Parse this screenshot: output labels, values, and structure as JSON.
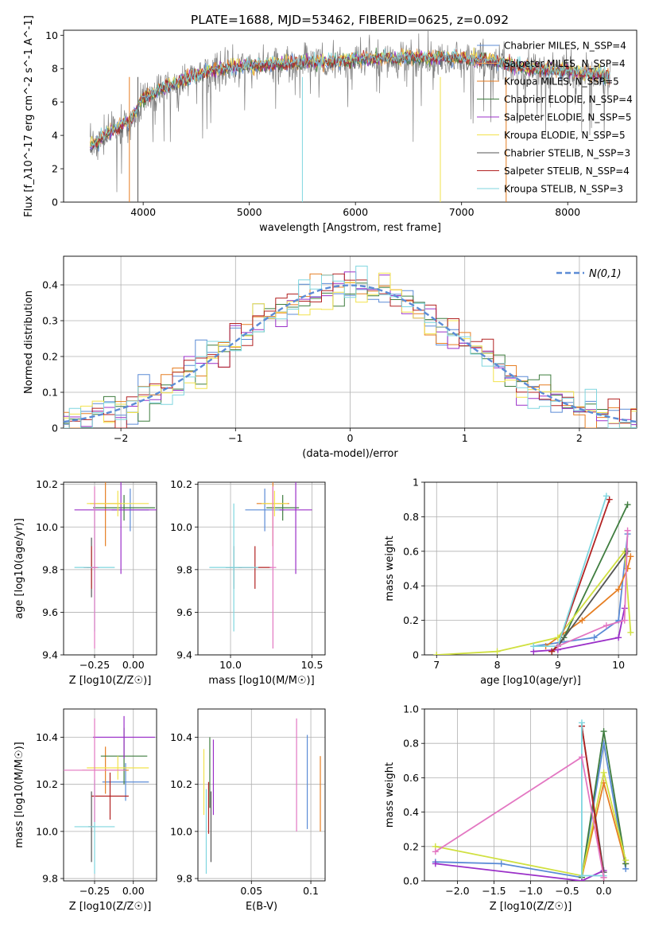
{
  "title": "PLATE=1688, MJD=53462, FIBERID=0625, z=0.092",
  "colors": {
    "chabrier_miles": "#5b8bd6",
    "salpeter_miles": "#e8a15b",
    "kroupa_miles": "#e67e22",
    "chabrier_elodie": "#3f7d3f",
    "salpeter_elodie": "#9b30c8",
    "kroupa_elodie": "#f2e24b",
    "chabrier_stelib": "#555555",
    "salpeter_stelib": "#b22222",
    "kroupa_stelib": "#7fd6df",
    "normal_curve": "#5b8bd6",
    "pink": "#e377c2",
    "lime": "#d0e040"
  },
  "chart_data": [
    {
      "id": "spectrum",
      "type": "line",
      "xlabel": "wavelength [Angstrom, rest frame]",
      "ylabel": "Flux [f_λ10^-17 erg cm^-2 s^-1 A^-1]",
      "xlim": [
        3250,
        8650
      ],
      "ylim": [
        0,
        10.3
      ],
      "xticks": [
        4000,
        5000,
        6000,
        7000,
        8000
      ],
      "yticks": [
        0,
        2,
        4,
        6,
        8,
        10
      ],
      "legend_position": "right",
      "legend": [
        {
          "label": "Chabrier MILES, N_SSP=4",
          "color": "chabrier_miles"
        },
        {
          "label": "Salpeter MILES, N_SSP=4",
          "color": "salpeter_miles"
        },
        {
          "label": "Kroupa MILES, N_SSP=5",
          "color": "kroupa_miles"
        },
        {
          "label": "Chabrier ELODIE, N_SSP=4",
          "color": "chabrier_elodie"
        },
        {
          "label": "Salpeter ELODIE, N_SSP=5",
          "color": "salpeter_elodie"
        },
        {
          "label": "Kroupa ELODIE, N_SSP=5",
          "color": "kroupa_elodie"
        },
        {
          "label": "Chabrier STELIB, N_SSP=3",
          "color": "chabrier_stelib"
        },
        {
          "label": "Salpeter STELIB, N_SSP=4",
          "color": "salpeter_stelib"
        },
        {
          "label": "Kroupa STELIB, N_SSP=3",
          "color": "kroupa_stelib"
        }
      ],
      "continuum": {
        "x": [
          3500,
          3700,
          3900,
          4000,
          4200,
          4400,
          4600,
          4800,
          5000,
          5200,
          5500,
          6000,
          6500,
          7000,
          7400,
          7600,
          8000,
          8400
        ],
        "y": [
          3.3,
          4.2,
          5.0,
          6.2,
          6.8,
          7.3,
          7.8,
          8.0,
          8.1,
          8.2,
          8.3,
          8.5,
          8.6,
          8.6,
          8.3,
          8.0,
          7.8,
          7.5
        ]
      }
    },
    {
      "id": "residuals",
      "type": "bar",
      "xlabel": "(data-model)/error",
      "ylabel": "Normed distribution",
      "xlim": [
        -2.5,
        2.5
      ],
      "ylim": [
        0,
        0.48
      ],
      "xticks": [
        -2,
        -1,
        0,
        1,
        2
      ],
      "yticks": [
        0.0,
        0.1,
        0.2,
        0.3,
        0.4
      ],
      "legend": [
        {
          "label": "N(0,1)",
          "color": "normal_curve",
          "style": "dashed"
        }
      ],
      "bin_width": 0.1
    },
    {
      "id": "age-vs-z",
      "type": "scatter",
      "xlabel": "Z [log10(Z/Z☉)]",
      "ylabel": "age [log10(age/yr)]",
      "xlim": [
        -0.45,
        0.15
      ],
      "ylim": [
        9.4,
        10.21
      ],
      "xticks": [
        -0.25,
        0.0
      ],
      "yticks": [
        9.4,
        9.6,
        9.8,
        10.0,
        10.2
      ],
      "points": [
        {
          "x": -0.02,
          "y": 10.08,
          "xerr": 0.12,
          "yerr": 0.1,
          "color": "chabrier_miles"
        },
        {
          "x": -0.18,
          "y": 10.11,
          "xerr": 0.1,
          "yerr": 0.2,
          "color": "kroupa_miles"
        },
        {
          "x": -0.06,
          "y": 10.09,
          "xerr": 0.2,
          "yerr": 0.06,
          "color": "chabrier_elodie"
        },
        {
          "x": -0.08,
          "y": 10.08,
          "xerr": 0.3,
          "yerr": 0.3,
          "color": "salpeter_elodie"
        },
        {
          "x": -0.1,
          "y": 10.11,
          "xerr": 0.2,
          "yerr": 0.06,
          "color": "kroupa_elodie"
        },
        {
          "x": -0.27,
          "y": 9.81,
          "xerr": 0.03,
          "yerr": 0.14,
          "color": "chabrier_stelib"
        },
        {
          "x": -0.27,
          "y": 9.81,
          "xerr": 0.05,
          "yerr": 0.1,
          "color": "salpeter_stelib"
        },
        {
          "x": -0.25,
          "y": 9.81,
          "xerr": 0.13,
          "yerr": 0.3,
          "color": "kroupa_stelib"
        },
        {
          "x": -0.25,
          "y": 9.81,
          "xerr": 0.02,
          "yerr": 0.38,
          "color": "pink"
        }
      ]
    },
    {
      "id": "age-vs-mass",
      "type": "scatter",
      "xlabel": "mass [log10(M/M☉)]",
      "ylabel": "",
      "xlim": [
        9.8,
        10.58
      ],
      "ylim": [
        9.4,
        10.21
      ],
      "xticks": [
        10.0,
        10.5
      ],
      "yticks": [
        9.4,
        9.6,
        9.8,
        10.0,
        10.2
      ],
      "points": [
        {
          "x": 10.21,
          "y": 10.08,
          "xerr": 0.12,
          "yerr": 0.1,
          "color": "chabrier_miles"
        },
        {
          "x": 10.26,
          "y": 10.11,
          "xerr": 0.1,
          "yerr": 0.2,
          "color": "kroupa_miles"
        },
        {
          "x": 10.32,
          "y": 10.09,
          "xerr": 0.1,
          "yerr": 0.06,
          "color": "chabrier_elodie"
        },
        {
          "x": 10.4,
          "y": 10.08,
          "xerr": 0.1,
          "yerr": 0.3,
          "color": "salpeter_elodie"
        },
        {
          "x": 10.27,
          "y": 10.11,
          "xerr": 0.08,
          "yerr": 0.06,
          "color": "kroupa_elodie"
        },
        {
          "x": 10.02,
          "y": 9.81,
          "xerr": 0.05,
          "yerr": 0.1,
          "color": "chabrier_stelib"
        },
        {
          "x": 10.15,
          "y": 9.81,
          "xerr": 0.1,
          "yerr": 0.1,
          "color": "salpeter_stelib"
        },
        {
          "x": 10.02,
          "y": 9.81,
          "xerr": 0.15,
          "yerr": 0.3,
          "color": "kroupa_stelib"
        },
        {
          "x": 10.26,
          "y": 9.81,
          "xerr": 0.02,
          "yerr": 0.38,
          "color": "pink"
        }
      ]
    },
    {
      "id": "mass-weight-vs-age",
      "type": "line",
      "xlabel": "age [log10(age/yr)]",
      "ylabel": "mass weight",
      "xlim": [
        6.8,
        10.3
      ],
      "ylim": [
        0,
        1.0
      ],
      "xticks": [
        7,
        8,
        9,
        10
      ],
      "yticks": [
        0.0,
        0.2,
        0.4,
        0.6,
        0.8,
        1.0
      ],
      "series": [
        {
          "color": "chabrier_miles",
          "x": [
            8.6,
            9.6,
            10.0,
            10.15
          ],
          "y": [
            0.05,
            0.1,
            0.2,
            0.7
          ]
        },
        {
          "color": "kroupa_miles",
          "x": [
            8.8,
            9.4,
            10.0,
            10.15,
            10.2
          ],
          "y": [
            0.05,
            0.2,
            0.38,
            0.5,
            0.57
          ]
        },
        {
          "color": "chabrier_elodie",
          "x": [
            8.9,
            9.1,
            10.15
          ],
          "y": [
            0.02,
            0.1,
            0.87
          ]
        },
        {
          "color": "salpeter_elodie",
          "x": [
            8.6,
            9.0,
            10.0,
            10.1
          ],
          "y": [
            0.02,
            0.03,
            0.1,
            0.27
          ]
        },
        {
          "color": "lime",
          "x": [
            7.0,
            8.0,
            9.0,
            10.1,
            10.2
          ],
          "y": [
            0.0,
            0.02,
            0.1,
            0.6,
            0.13
          ]
        },
        {
          "color": "chabrier_stelib",
          "x": [
            9.0,
            10.15
          ],
          "y": [
            0.05,
            0.6
          ]
        },
        {
          "color": "salpeter_stelib",
          "x": [
            8.9,
            9.0,
            9.85
          ],
          "y": [
            0.02,
            0.05,
            0.9
          ]
        },
        {
          "color": "kroupa_stelib",
          "x": [
            8.6,
            9.0,
            9.8
          ],
          "y": [
            0.05,
            0.05,
            0.92
          ]
        },
        {
          "color": "pink",
          "x": [
            9.0,
            9.8,
            10.1,
            10.15
          ],
          "y": [
            0.05,
            0.17,
            0.2,
            0.72
          ]
        }
      ]
    },
    {
      "id": "mass-vs-z",
      "type": "scatter",
      "xlabel": "Z [log10(Z/Z☉)]",
      "ylabel": "mass [log10(M/M☉)]",
      "xlim": [
        -0.45,
        0.15
      ],
      "ylim": [
        9.79,
        10.52
      ],
      "xticks": [
        -0.25,
        0.0
      ],
      "yticks": [
        9.8,
        10.0,
        10.2,
        10.4
      ],
      "points": [
        {
          "x": -0.05,
          "y": 10.21,
          "xerr": 0.15,
          "yerr": 0.08,
          "color": "chabrier_miles"
        },
        {
          "x": -0.18,
          "y": 10.26,
          "xerr": 0.15,
          "yerr": 0.1,
          "color": "kroupa_miles"
        },
        {
          "x": -0.06,
          "y": 10.32,
          "xerr": 0.15,
          "yerr": 0.12,
          "color": "chabrier_elodie"
        },
        {
          "x": -0.06,
          "y": 10.4,
          "xerr": 0.2,
          "yerr": 0.09,
          "color": "salpeter_elodie"
        },
        {
          "x": -0.1,
          "y": 10.27,
          "xerr": 0.2,
          "yerr": 0.05,
          "color": "kroupa_elodie"
        },
        {
          "x": -0.27,
          "y": 10.02,
          "xerr": 0.02,
          "yerr": 0.15,
          "color": "chabrier_stelib"
        },
        {
          "x": -0.15,
          "y": 10.15,
          "xerr": 0.12,
          "yerr": 0.1,
          "color": "salpeter_stelib"
        },
        {
          "x": -0.25,
          "y": 10.02,
          "xerr": 0.13,
          "yerr": 0.2,
          "color": "kroupa_stelib"
        },
        {
          "x": -0.25,
          "y": 10.26,
          "xerr": 0.2,
          "yerr": 0.22,
          "color": "pink"
        }
      ]
    },
    {
      "id": "mass-vs-ebv",
      "type": "scatter",
      "xlabel": "E(B-V)",
      "ylabel": "",
      "xlim": [
        0.005,
        0.112
      ],
      "ylim": [
        9.79,
        10.52
      ],
      "xticks": [
        0.05,
        0.1
      ],
      "yticks": [
        9.8,
        10.0,
        10.2,
        10.4
      ],
      "points": [
        {
          "x": 0.097,
          "y": 10.21,
          "yerr": 0.2,
          "color": "chabrier_miles"
        },
        {
          "x": 0.108,
          "y": 10.16,
          "yerr": 0.16,
          "color": "kroupa_miles"
        },
        {
          "x": 0.015,
          "y": 10.25,
          "yerr": 0.15,
          "color": "chabrier_elodie"
        },
        {
          "x": 0.018,
          "y": 10.23,
          "yerr": 0.16,
          "color": "salpeter_elodie"
        },
        {
          "x": 0.01,
          "y": 10.21,
          "yerr": 0.14,
          "color": "kroupa_elodie"
        },
        {
          "x": 0.016,
          "y": 10.02,
          "yerr": 0.15,
          "color": "chabrier_stelib"
        },
        {
          "x": 0.014,
          "y": 10.1,
          "yerr": 0.11,
          "color": "salpeter_stelib"
        },
        {
          "x": 0.012,
          "y": 10.0,
          "yerr": 0.18,
          "color": "kroupa_stelib"
        },
        {
          "x": 0.088,
          "y": 10.24,
          "yerr": 0.24,
          "color": "pink"
        }
      ]
    },
    {
      "id": "mass-weight-vs-z",
      "type": "line",
      "xlabel": "Z [log10(Z/Z☉)]",
      "ylabel": "mass weight",
      "xlim": [
        -2.45,
        0.45
      ],
      "ylim": [
        0,
        1.0
      ],
      "xticks": [
        -2.0,
        -1.5,
        -1.0,
        -0.5,
        0.0
      ],
      "yticks": [
        0.0,
        0.2,
        0.4,
        0.6,
        0.8,
        1.0
      ],
      "series": [
        {
          "color": "chabrier_miles",
          "x": [
            -2.3,
            -1.4,
            -0.3,
            0.0,
            0.3
          ],
          "y": [
            0.11,
            0.1,
            0.02,
            0.8,
            0.07
          ]
        },
        {
          "color": "kroupa_miles",
          "x": [
            -0.3,
            0.0,
            0.3
          ],
          "y": [
            0.02,
            0.57,
            0.1
          ]
        },
        {
          "color": "chabrier_elodie",
          "x": [
            -0.3,
            0.0,
            0.3
          ],
          "y": [
            0.02,
            0.87,
            0.1
          ]
        },
        {
          "color": "salpeter_elodie",
          "x": [
            -2.3,
            -0.3,
            0.0
          ],
          "y": [
            0.1,
            0.0,
            0.06
          ]
        },
        {
          "color": "lime",
          "x": [
            -2.3,
            -0.3,
            0.0,
            0.3
          ],
          "y": [
            0.2,
            0.03,
            0.63,
            0.12
          ]
        },
        {
          "color": "chabrier_stelib",
          "x": [
            -0.3,
            0.0
          ],
          "y": [
            0.9,
            0.05
          ]
        },
        {
          "color": "salpeter_stelib",
          "x": [
            -0.3,
            0.0
          ],
          "y": [
            0.9,
            0.02
          ]
        },
        {
          "color": "kroupa_stelib",
          "x": [
            -0.3,
            -0.3,
            0.0
          ],
          "y": [
            0.92,
            0.03,
            0.03
          ]
        },
        {
          "color": "pink",
          "x": [
            -2.3,
            -0.3,
            0.0
          ],
          "y": [
            0.17,
            0.72,
            0.02
          ]
        }
      ]
    }
  ]
}
